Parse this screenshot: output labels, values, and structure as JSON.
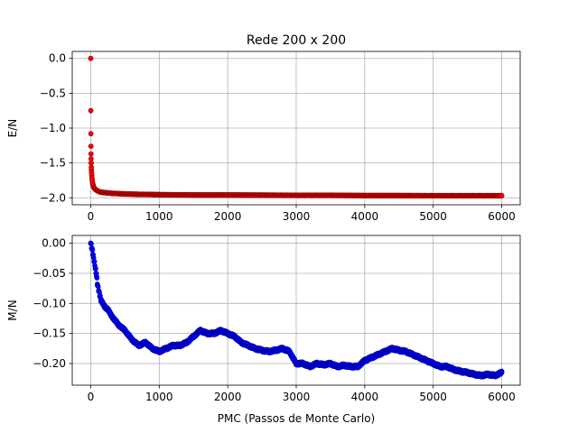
{
  "chart_data": {
    "type": "scatter",
    "title": "Rede 200 x 200",
    "xlabel": "PMC (Passos de Monte Carlo)",
    "subplots": [
      {
        "name": "energy",
        "ylabel": "E/N",
        "color": "#ff0000",
        "edgecolor": "#8b0000",
        "xlim": [
          -270,
          6270
        ],
        "ylim": [
          -2.1,
          0.1
        ],
        "xticks": [
          0,
          1000,
          2000,
          3000,
          4000,
          5000,
          6000
        ],
        "yticks": [
          0.0,
          -0.5,
          -1.0,
          -1.5,
          -2.0
        ],
        "ytick_labels": [
          "0.0",
          "−0.5",
          "−1.0",
          "−1.5",
          "−2.0"
        ],
        "grid": true,
        "series": [
          {
            "x": [
              0,
              1,
              2,
              3,
              4,
              5,
              6,
              8,
              10,
              12,
              15,
              18,
              22,
              26,
              30,
              35,
              40,
              50,
              60,
              70,
              80,
              100,
              120,
              150,
              200,
              300,
              400,
              500,
              700,
              1000,
              1500,
              2000,
              2500,
              3000,
              3500,
              4000,
              4500,
              5000,
              5500,
              6000
            ],
            "y": [
              0.0,
              -0.75,
              -1.08,
              -1.26,
              -1.37,
              -1.44,
              -1.5,
              -1.56,
              -1.6,
              -1.64,
              -1.68,
              -1.72,
              -1.75,
              -1.78,
              -1.8,
              -1.82,
              -1.84,
              -1.86,
              -1.87,
              -1.88,
              -1.89,
              -1.9,
              -1.91,
              -1.92,
              -1.925,
              -1.935,
              -1.94,
              -1.945,
              -1.95,
              -1.955,
              -1.96,
              -1.96,
              -1.962,
              -1.965,
              -1.965,
              -1.968,
              -1.968,
              -1.97,
              -1.97,
              -1.97
            ]
          }
        ]
      },
      {
        "name": "magnetization",
        "ylabel": "M/N",
        "color": "#0000ff",
        "edgecolor": "#00008b",
        "xlim": [
          -270,
          6270
        ],
        "ylim": [
          -0.236,
          0.013
        ],
        "xticks": [
          0,
          1000,
          2000,
          3000,
          4000,
          5000,
          6000
        ],
        "yticks": [
          0.0,
          -0.05,
          -0.1,
          -0.15,
          -0.2
        ],
        "ytick_labels": [
          "0.00",
          "−0.05",
          "−0.10",
          "−0.15",
          "−0.20"
        ],
        "grid": true,
        "series": [
          {
            "x": [
              0,
              20,
              50,
              80,
              100,
              150,
              200,
              250,
              300,
              400,
              500,
              600,
              700,
              800,
              900,
              1000,
              1100,
              1200,
              1300,
              1400,
              1500,
              1600,
              1700,
              1800,
              1900,
              2000,
              2100,
              2200,
              2300,
              2400,
              2500,
              2600,
              2700,
              2800,
              2900,
              3000,
              3100,
              3200,
              3300,
              3400,
              3500,
              3600,
              3700,
              3800,
              3900,
              4000,
              4100,
              4200,
              4300,
              4400,
              4500,
              4600,
              4700,
              4800,
              4900,
              5000,
              5100,
              5200,
              5300,
              5400,
              5500,
              5600,
              5700,
              5800,
              5900,
              6000
            ],
            "y": [
              0.0,
              -0.01,
              -0.03,
              -0.05,
              -0.07,
              -0.095,
              -0.105,
              -0.11,
              -0.12,
              -0.135,
              -0.145,
              -0.16,
              -0.17,
              -0.165,
              -0.175,
              -0.18,
              -0.175,
              -0.17,
              -0.17,
              -0.165,
              -0.155,
              -0.145,
              -0.15,
              -0.15,
              -0.145,
              -0.15,
              -0.155,
              -0.165,
              -0.17,
              -0.175,
              -0.178,
              -0.18,
              -0.178,
              -0.175,
              -0.18,
              -0.2,
              -0.2,
              -0.205,
              -0.2,
              -0.202,
              -0.2,
              -0.205,
              -0.203,
              -0.205,
              -0.205,
              -0.195,
              -0.19,
              -0.185,
              -0.18,
              -0.175,
              -0.178,
              -0.18,
              -0.185,
              -0.19,
              -0.195,
              -0.2,
              -0.205,
              -0.205,
              -0.21,
              -0.213,
              -0.215,
              -0.218,
              -0.22,
              -0.218,
              -0.22,
              -0.215
            ]
          }
        ]
      }
    ]
  }
}
